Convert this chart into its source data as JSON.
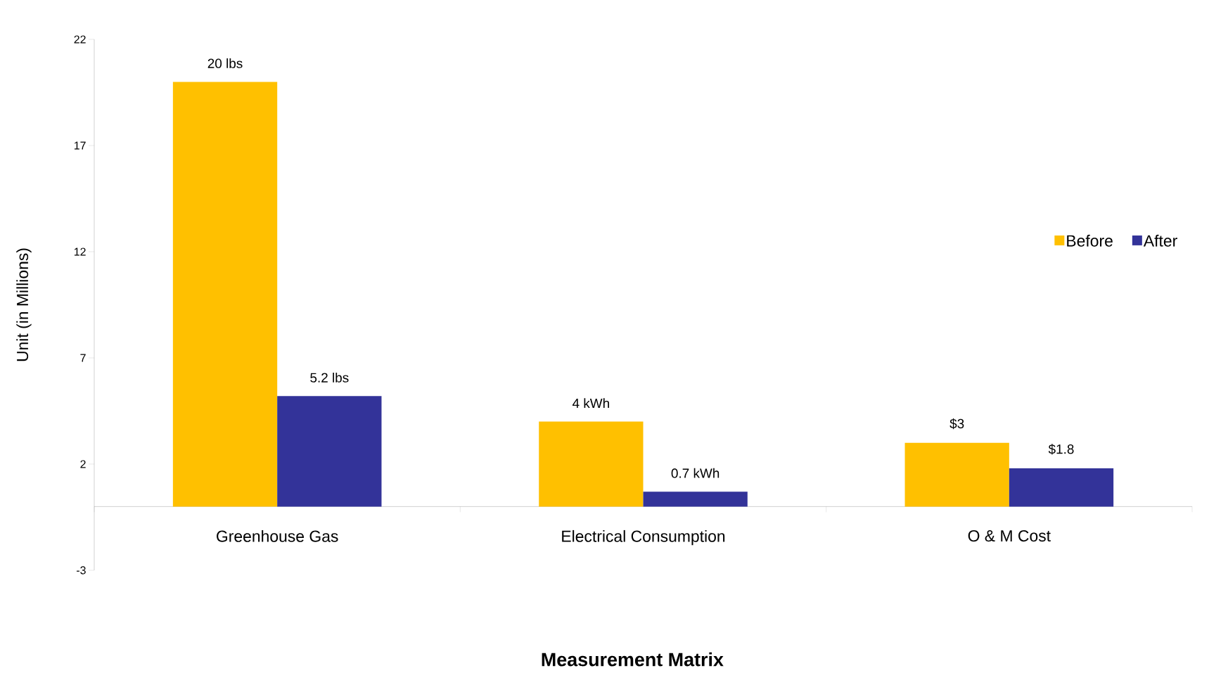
{
  "chart_data": {
    "type": "bar",
    "xlabel": "Measurement Matrix",
    "ylabel": "Unit (in Millions)",
    "categories": [
      "Greenhouse Gas",
      "Electrical Consumption",
      "O & M Cost"
    ],
    "series": [
      {
        "name": "Before",
        "color": "#ffc000",
        "values": [
          20,
          4,
          3
        ],
        "value_labels": [
          "20 lbs",
          "4 kWh",
          "$3"
        ]
      },
      {
        "name": "After",
        "color": "#333399",
        "values": [
          5.2,
          0.7,
          1.8
        ],
        "value_labels": [
          "5.2 lbs",
          "0.7 kWh",
          "$1.8"
        ]
      }
    ],
    "ylim": [
      -3,
      22
    ],
    "yticks": [
      -3,
      2,
      7,
      12,
      17,
      22
    ],
    "grid": false,
    "legend": "right"
  }
}
